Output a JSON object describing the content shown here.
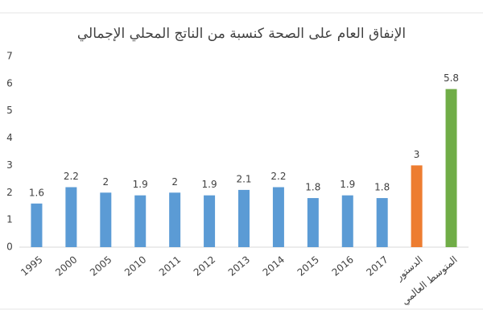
{
  "chart_data": {
    "type": "bar",
    "title": "الإنفاق العام على الصحة كنسبة من الناتج المحلي الإجمالي",
    "categories": [
      "1995",
      "2000",
      "2005",
      "2010",
      "2011",
      "2012",
      "2013",
      "2014",
      "2015",
      "2016",
      "2017",
      "الدستور",
      "المتوسط العالمي"
    ],
    "values": [
      1.6,
      2.2,
      2,
      1.9,
      2,
      1.9,
      2.1,
      2.2,
      1.8,
      1.9,
      1.8,
      3,
      5.8
    ],
    "colors": [
      "#5b9bd5",
      "#5b9bd5",
      "#5b9bd5",
      "#5b9bd5",
      "#5b9bd5",
      "#5b9bd5",
      "#5b9bd5",
      "#5b9bd5",
      "#5b9bd5",
      "#5b9bd5",
      "#5b9bd5",
      "#ed7d31",
      "#70ad47"
    ],
    "ylim": [
      0,
      7
    ],
    "yticks": [
      0,
      1,
      2,
      3,
      4,
      5,
      6,
      7
    ],
    "grid": false
  }
}
